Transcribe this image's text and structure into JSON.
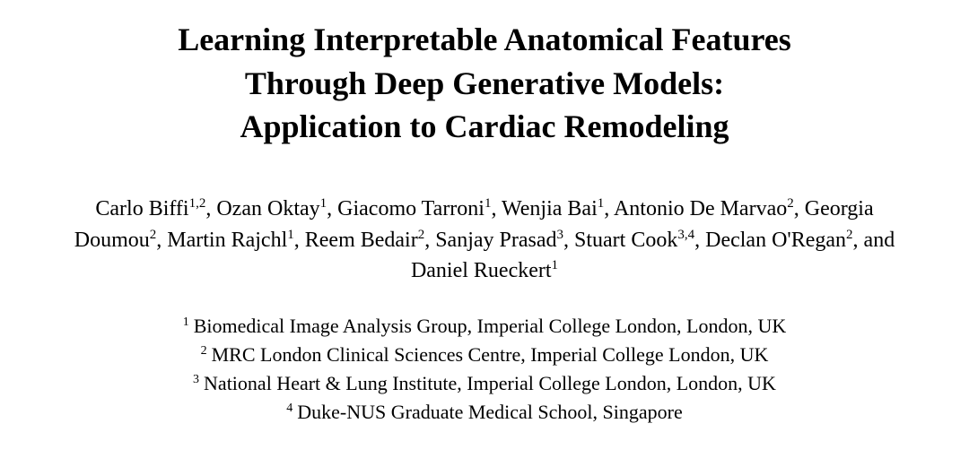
{
  "title": {
    "line1": "Learning Interpretable Anatomical Features",
    "line2": "Through Deep Generative Models:",
    "line3": "Application to Cardiac Remodeling"
  },
  "authors": [
    {
      "name": "Carlo Biffi",
      "affil": "1,2",
      "after": ", "
    },
    {
      "name": "Ozan Oktay",
      "affil": "1",
      "after": ", "
    },
    {
      "name": "Giacomo Tarroni",
      "affil": "1",
      "after": ", "
    },
    {
      "name": "Wenjia Bai",
      "affil": "1",
      "after": ", "
    },
    {
      "name": "Antonio De Marvao",
      "affil": "2",
      "after": ", "
    },
    {
      "name": "Georgia Doumou",
      "affil": "2",
      "after": ", "
    },
    {
      "name": "Martin Rajchl",
      "affil": "1",
      "after": ", "
    },
    {
      "name": "Reem Bedair",
      "affil": "2",
      "after": ", "
    },
    {
      "name": "Sanjay Prasad",
      "affil": "3",
      "after": ", "
    },
    {
      "name": "Stuart Cook",
      "affil": "3,4",
      "after": ", "
    },
    {
      "name": "Declan O'Regan",
      "affil": "2",
      "after": ", and "
    },
    {
      "name": "Daniel Rueckert",
      "affil": "1",
      "after": ""
    }
  ],
  "affiliations": [
    {
      "num": "1",
      "text": "Biomedical Image Analysis Group, Imperial College London, London, UK"
    },
    {
      "num": "2",
      "text": "MRC London Clinical Sciences Centre, Imperial College London, UK"
    },
    {
      "num": "3",
      "text": "National Heart & Lung Institute, Imperial College London, London, UK"
    },
    {
      "num": "4",
      "text": "Duke-NUS Graduate Medical School, Singapore"
    }
  ]
}
